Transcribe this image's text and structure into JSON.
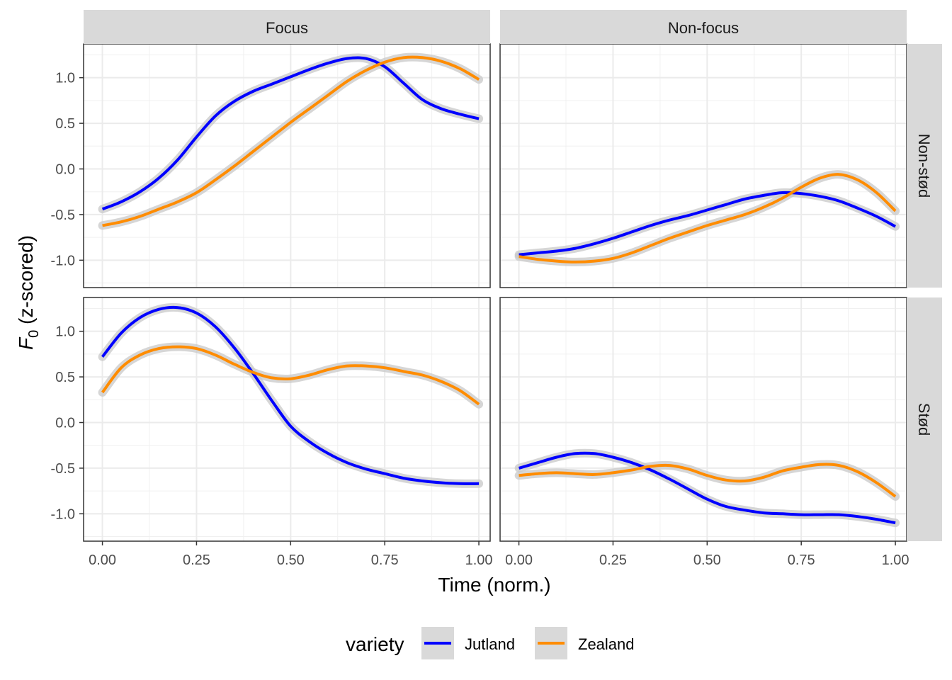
{
  "chart_data": {
    "type": "line",
    "xlabel": "Time (norm.)",
    "ylabel_main": "F",
    "ylabel_sub": "0",
    "ylabel_rest": " (z-scored)",
    "xlim": [
      -0.05,
      1.03
    ],
    "ylim": [
      -1.3,
      1.37
    ],
    "x_ticks": [
      0.0,
      0.25,
      0.5,
      0.75,
      1.0
    ],
    "x_tick_labels": [
      "0.00",
      "0.25",
      "0.50",
      "0.75",
      "1.00"
    ],
    "y_ticks": [
      -1.0,
      -0.5,
      0.0,
      0.5,
      1.0
    ],
    "y_tick_labels": [
      "-1.0",
      "-0.5",
      "0.0",
      "0.5",
      "1.0"
    ],
    "grid": true,
    "col_labels": [
      "Focus",
      "Non-focus"
    ],
    "row_labels": [
      "Non-stød",
      "Stød"
    ],
    "legend": {
      "title": "variety",
      "position": "bottom",
      "entries": [
        {
          "name": "Jutland",
          "color": "#0000ff"
        },
        {
          "name": "Zealand",
          "color": "#ff8c00"
        }
      ]
    },
    "x": [
      0.0,
      0.05,
      0.1,
      0.15,
      0.2,
      0.25,
      0.3,
      0.35,
      0.4,
      0.45,
      0.5,
      0.55,
      0.6,
      0.65,
      0.7,
      0.75,
      0.8,
      0.85,
      0.9,
      0.95,
      1.0
    ],
    "panels": [
      {
        "row": "Non-stød",
        "col": "Focus",
        "series": [
          {
            "name": "Jutland",
            "values": [
              -0.44,
              -0.36,
              -0.25,
              -0.1,
              0.1,
              0.35,
              0.58,
              0.74,
              0.85,
              0.93,
              1.01,
              1.09,
              1.16,
              1.21,
              1.21,
              1.12,
              0.94,
              0.76,
              0.66,
              0.6,
              0.55
            ]
          },
          {
            "name": "Zealand",
            "values": [
              -0.62,
              -0.58,
              -0.52,
              -0.44,
              -0.36,
              -0.26,
              -0.12,
              0.03,
              0.19,
              0.35,
              0.51,
              0.66,
              0.81,
              0.96,
              1.08,
              1.17,
              1.22,
              1.22,
              1.18,
              1.1,
              0.98
            ]
          }
        ]
      },
      {
        "row": "Non-stød",
        "col": "Non-focus",
        "series": [
          {
            "name": "Jutland",
            "values": [
              -0.94,
              -0.92,
              -0.9,
              -0.87,
              -0.82,
              -0.76,
              -0.69,
              -0.62,
              -0.56,
              -0.51,
              -0.45,
              -0.39,
              -0.33,
              -0.29,
              -0.26,
              -0.27,
              -0.3,
              -0.35,
              -0.43,
              -0.52,
              -0.63
            ]
          },
          {
            "name": "Zealand",
            "values": [
              -0.96,
              -0.99,
              -1.01,
              -1.02,
              -1.01,
              -0.98,
              -0.92,
              -0.84,
              -0.76,
              -0.69,
              -0.62,
              -0.56,
              -0.5,
              -0.42,
              -0.32,
              -0.2,
              -0.1,
              -0.06,
              -0.12,
              -0.26,
              -0.46
            ]
          }
        ]
      },
      {
        "row": "Stød",
        "col": "Focus",
        "series": [
          {
            "name": "Jutland",
            "values": [
              0.72,
              0.98,
              1.15,
              1.24,
              1.26,
              1.2,
              1.05,
              0.82,
              0.54,
              0.24,
              -0.04,
              -0.21,
              -0.34,
              -0.44,
              -0.51,
              -0.56,
              -0.61,
              -0.64,
              -0.66,
              -0.67,
              -0.67
            ]
          },
          {
            "name": "Zealand",
            "values": [
              0.33,
              0.6,
              0.74,
              0.81,
              0.83,
              0.81,
              0.74,
              0.64,
              0.55,
              0.49,
              0.48,
              0.52,
              0.58,
              0.62,
              0.62,
              0.6,
              0.56,
              0.52,
              0.45,
              0.35,
              0.2
            ]
          }
        ]
      },
      {
        "row": "Stød",
        "col": "Non-focus",
        "series": [
          {
            "name": "Jutland",
            "values": [
              -0.5,
              -0.44,
              -0.38,
              -0.34,
              -0.34,
              -0.38,
              -0.44,
              -0.52,
              -0.62,
              -0.73,
              -0.84,
              -0.92,
              -0.96,
              -0.99,
              -1.0,
              -1.01,
              -1.01,
              -1.01,
              -1.03,
              -1.06,
              -1.1
            ]
          },
          {
            "name": "Zealand",
            "values": [
              -0.58,
              -0.56,
              -0.55,
              -0.56,
              -0.57,
              -0.55,
              -0.52,
              -0.48,
              -0.47,
              -0.51,
              -0.58,
              -0.63,
              -0.64,
              -0.6,
              -0.53,
              -0.49,
              -0.46,
              -0.47,
              -0.54,
              -0.66,
              -0.81
            ]
          }
        ]
      }
    ]
  }
}
